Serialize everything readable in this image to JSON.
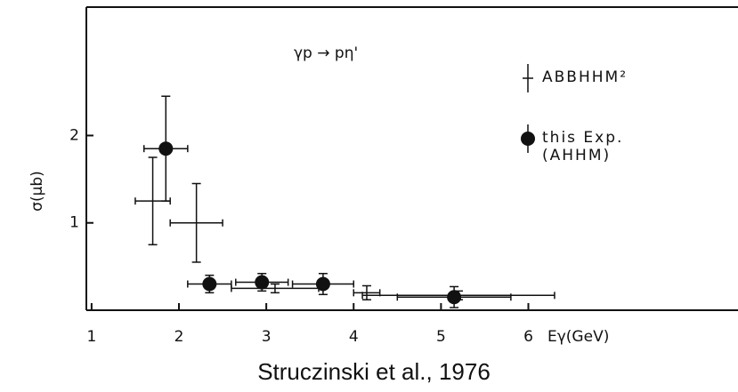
{
  "chart_data": {
    "type": "scatter",
    "caption": "Struczinski et al., 1976",
    "annotation": "γp → pη'",
    "x_label": "Eγ(GeV)",
    "y_label": "σ(μb)",
    "xlim": [
      0.94,
      8.4
    ],
    "ylim": [
      0,
      3.47
    ],
    "xticks": [
      1,
      2,
      3,
      4,
      5,
      6
    ],
    "yticks": [
      1,
      2
    ],
    "series": [
      {
        "name": "ABBHHM²",
        "marker": "cross",
        "color": "#111111",
        "x": [
          1.7,
          2.2,
          3.1,
          4.15,
          5.2
        ],
        "values": [
          1.25,
          1.0,
          0.25,
          0.2,
          0.17
        ],
        "xerr": [
          0.2,
          0.3,
          0.5,
          0.15,
          1.1
        ],
        "yerr": [
          0.5,
          0.45,
          0.05,
          0.08,
          0.05
        ]
      },
      {
        "name": "this Exp. (AHHM)",
        "marker": "dot",
        "color": "#111111",
        "x": [
          1.85,
          2.35,
          2.95,
          3.65,
          5.15
        ],
        "values": [
          1.85,
          0.3,
          0.32,
          0.3,
          0.15
        ],
        "xerr": [
          0.25,
          0.25,
          0.3,
          0.35,
          0.65
        ],
        "yerr": [
          0.6,
          0.1,
          0.1,
          0.12,
          0.12
        ]
      }
    ]
  }
}
